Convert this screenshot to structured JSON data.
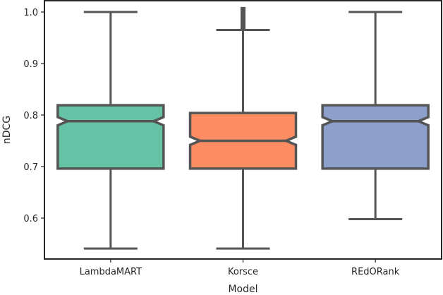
{
  "chart_data": {
    "type": "boxplot",
    "title": "",
    "xlabel": "Model",
    "ylabel": "nDCG",
    "ylim": [
      0.52,
      1.022
    ],
    "yticks": [
      0.6,
      0.7,
      0.8,
      0.9,
      1.0
    ],
    "ytick_labels": [
      "0.6",
      "0.7",
      "0.8",
      "0.9",
      "1.0"
    ],
    "notched": true,
    "grid": false,
    "legend": null,
    "categories": [
      "LambdaMART",
      "Korsce",
      "REdORank"
    ],
    "series": [
      {
        "name": "LambdaMART",
        "color": "#66c2a5",
        "whisker_low": 0.541,
        "q1": 0.696,
        "median": 0.788,
        "q3": 0.819,
        "whisker_high": 1.0,
        "notch_low": 0.78,
        "notch_high": 0.796,
        "outliers": []
      },
      {
        "name": "Korsce",
        "color": "#fc8d62",
        "whisker_low": 0.541,
        "q1": 0.696,
        "median": 0.75,
        "q3": 0.804,
        "whisker_high": 0.965,
        "notch_low": 0.742,
        "notch_high": 0.758,
        "outliers": [
          0.97,
          0.975,
          0.98,
          0.985,
          0.99,
          0.995,
          1.0,
          1.005
        ]
      },
      {
        "name": "REdORank",
        "color": "#8da0cb",
        "whisker_low": 0.598,
        "q1": 0.696,
        "median": 0.788,
        "q3": 0.819,
        "whisker_high": 1.0,
        "notch_low": 0.78,
        "notch_high": 0.796,
        "outliers": []
      }
    ]
  },
  "style": {
    "line_color": "#555555",
    "axis_color": "#262626"
  }
}
